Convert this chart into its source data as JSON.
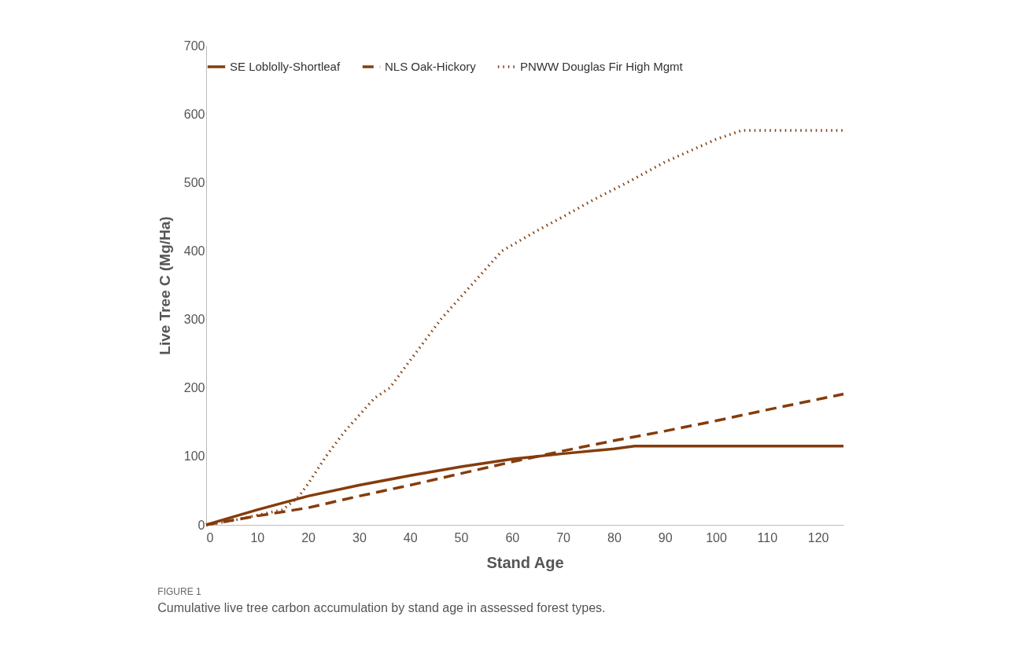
{
  "chart_data": {
    "type": "line",
    "xlabel": "Stand Age",
    "ylabel": "Live Tree C (Mg/Ha)",
    "xlim": [
      0,
      125
    ],
    "xticks": [
      0,
      10,
      20,
      30,
      40,
      50,
      60,
      70,
      80,
      90,
      100,
      110,
      120
    ],
    "ylim": [
      0,
      700
    ],
    "yticks": [
      0,
      100,
      200,
      300,
      400,
      500,
      600,
      700
    ],
    "grid": false,
    "legend": "top",
    "marker": "none",
    "annotations": [
      "FIGURE 1",
      "Cumulative live tree carbon accumulation by stand age in assessed forest types."
    ],
    "series": [
      {
        "name": "SE Loblolly-Shortleaf",
        "color": "#843c0c",
        "line_style": "solid",
        "x": [
          0,
          5,
          10,
          15,
          20,
          30,
          40,
          50,
          60,
          70,
          80,
          84,
          125
        ],
        "values": [
          0,
          11,
          22,
          32,
          42,
          58,
          72,
          85,
          96,
          104,
          111,
          115,
          115
        ]
      },
      {
        "name": "NLS Oak-Hickory",
        "color": "#843c0c",
        "line_style": "dashed",
        "x": [
          0,
          10,
          20,
          30,
          40,
          50,
          60,
          70,
          80,
          90,
          100,
          110,
          125
        ],
        "values": [
          0,
          13,
          25,
          42,
          58,
          75,
          92,
          108,
          123,
          137,
          152,
          168,
          191
        ]
      },
      {
        "name": "PNWW Douglas Fir High Mgmt",
        "color": "#843c0c",
        "line_style": "dotted",
        "x": [
          0,
          5,
          10,
          15,
          18,
          20,
          23.5,
          27,
          30,
          33,
          36,
          41,
          46,
          52,
          58,
          65,
          70,
          76,
          82.6,
          90,
          100,
          105,
          125
        ],
        "values": [
          0,
          6,
          14,
          22,
          40,
          60,
          100,
          135,
          160,
          185,
          200,
          250,
          300,
          350,
          400,
          430,
          450,
          475,
          500,
          530,
          563,
          576,
          576
        ]
      }
    ]
  }
}
